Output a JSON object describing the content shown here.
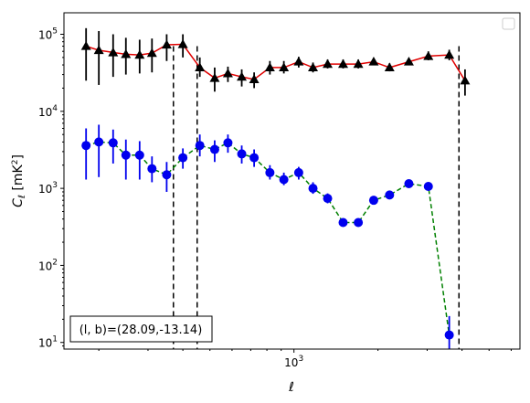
{
  "chart_data": {
    "type": "line",
    "xlabel": "ℓ",
    "ylabel": "C_ℓ [mK²]",
    "xscale": "log",
    "yscale": "log",
    "xlim": [
      150,
      6450
    ],
    "ylim": [
      8.2,
      190000
    ],
    "x_ticks": [
      {
        "value": 1000,
        "label": "10^3"
      }
    ],
    "y_ticks": [
      {
        "value": 10,
        "label": "10^1"
      },
      {
        "value": 100,
        "label": "10^2"
      },
      {
        "value": 1000,
        "label": "10^3"
      },
      {
        "value": 10000,
        "label": "10^4"
      },
      {
        "value": 100000,
        "label": "10^5"
      }
    ],
    "annotation": "(l, b)=(28.09,-13.14)",
    "legend": {
      "location": "upper right",
      "entries": []
    },
    "vlines": [
      370,
      450,
      3900
    ],
    "series": [
      {
        "marker": "triangle",
        "marker_color": "#000000",
        "line_color": "#e00000",
        "line_style": "solid",
        "points": [
          {
            "x": 180,
            "y": 70000,
            "lo": 25000,
            "hi": 120000
          },
          {
            "x": 200,
            "y": 62000,
            "lo": 22000,
            "hi": 110000
          },
          {
            "x": 225,
            "y": 58000,
            "lo": 28000,
            "hi": 100000
          },
          {
            "x": 250,
            "y": 55000,
            "lo": 30000,
            "hi": 90000
          },
          {
            "x": 280,
            "y": 54000,
            "lo": 31000,
            "hi": 85000
          },
          {
            "x": 310,
            "y": 57000,
            "lo": 32000,
            "hi": 88000
          },
          {
            "x": 350,
            "y": 73000,
            "lo": 45000,
            "hi": 100000
          },
          {
            "x": 400,
            "y": 74000,
            "lo": 50000,
            "hi": 100000
          },
          {
            "x": 460,
            "y": 37000,
            "lo": 28000,
            "hi": 50000
          },
          {
            "x": 520,
            "y": 27000,
            "lo": 18000,
            "hi": 37000
          },
          {
            "x": 580,
            "y": 31000,
            "lo": 24000,
            "hi": 38000
          },
          {
            "x": 650,
            "y": 28000,
            "lo": 21000,
            "hi": 35000
          },
          {
            "x": 720,
            "y": 26000,
            "lo": 20000,
            "hi": 32000
          },
          {
            "x": 820,
            "y": 37000,
            "lo": 30000,
            "hi": 45000
          },
          {
            "x": 920,
            "y": 37000,
            "lo": 31000,
            "hi": 45000
          },
          {
            "x": 1040,
            "y": 44000,
            "lo": 37000,
            "hi": 51000
          },
          {
            "x": 1170,
            "y": 37000,
            "lo": 32000,
            "hi": 43000
          },
          {
            "x": 1320,
            "y": 41000,
            "lo": 36000,
            "hi": 47000
          },
          {
            "x": 1500,
            "y": 41000,
            "lo": 36000,
            "hi": 47000
          },
          {
            "x": 1700,
            "y": 41000,
            "lo": 36000,
            "hi": 47000
          },
          {
            "x": 1930,
            "y": 44000,
            "lo": 40000,
            "hi": 49000
          },
          {
            "x": 2200,
            "y": 37000,
            "lo": 33000,
            "hi": 42000
          },
          {
            "x": 2580,
            "y": 44000,
            "lo": 40000,
            "hi": 48000
          },
          {
            "x": 3030,
            "y": 52000,
            "lo": 46000,
            "hi": 60000
          },
          {
            "x": 3600,
            "y": 54000,
            "lo": 46000,
            "hi": 63000
          },
          {
            "x": 4100,
            "y": 25000,
            "lo": 16000,
            "hi": 35000
          }
        ]
      },
      {
        "marker": "circle",
        "marker_color": "#0000ee",
        "line_color": "#008000",
        "line_style": "dashed",
        "points": [
          {
            "x": 180,
            "y": 3600,
            "lo": 1300,
            "hi": 6000
          },
          {
            "x": 200,
            "y": 4000,
            "lo": 1400,
            "hi": 6700
          },
          {
            "x": 225,
            "y": 3900,
            "lo": 2100,
            "hi": 5800
          },
          {
            "x": 250,
            "y": 2700,
            "lo": 1300,
            "hi": 4300
          },
          {
            "x": 280,
            "y": 2700,
            "lo": 1300,
            "hi": 4100
          },
          {
            "x": 310,
            "y": 1800,
            "lo": 1200,
            "hi": 2600
          },
          {
            "x": 350,
            "y": 1500,
            "lo": 900,
            "hi": 2200
          },
          {
            "x": 400,
            "y": 2500,
            "lo": 1800,
            "hi": 3300
          },
          {
            "x": 460,
            "y": 3600,
            "lo": 2600,
            "hi": 5000
          },
          {
            "x": 520,
            "y": 3200,
            "lo": 2200,
            "hi": 4200
          },
          {
            "x": 580,
            "y": 3900,
            "lo": 2900,
            "hi": 5000
          },
          {
            "x": 650,
            "y": 2800,
            "lo": 2100,
            "hi": 3600
          },
          {
            "x": 720,
            "y": 2500,
            "lo": 1900,
            "hi": 3200
          },
          {
            "x": 820,
            "y": 1600,
            "lo": 1300,
            "hi": 2000
          },
          {
            "x": 920,
            "y": 1300,
            "lo": 1100,
            "hi": 1600
          },
          {
            "x": 1040,
            "y": 1600,
            "lo": 1300,
            "hi": 1900
          },
          {
            "x": 1170,
            "y": 1000,
            "lo": 850,
            "hi": 1200
          },
          {
            "x": 1320,
            "y": 740,
            "lo": 640,
            "hi": 860
          },
          {
            "x": 1500,
            "y": 360,
            "lo": 330,
            "hi": 400
          },
          {
            "x": 1700,
            "y": 360,
            "lo": 330,
            "hi": 400
          },
          {
            "x": 1930,
            "y": 700,
            "lo": 640,
            "hi": 780
          },
          {
            "x": 2200,
            "y": 820,
            "lo": 740,
            "hi": 910
          },
          {
            "x": 2580,
            "y": 1150,
            "lo": 1040,
            "hi": 1280
          },
          {
            "x": 3030,
            "y": 1060,
            "lo": 950,
            "hi": 1200
          },
          {
            "x": 3600,
            "y": 12.5,
            "lo": 8.2,
            "hi": 22
          }
        ]
      }
    ]
  }
}
